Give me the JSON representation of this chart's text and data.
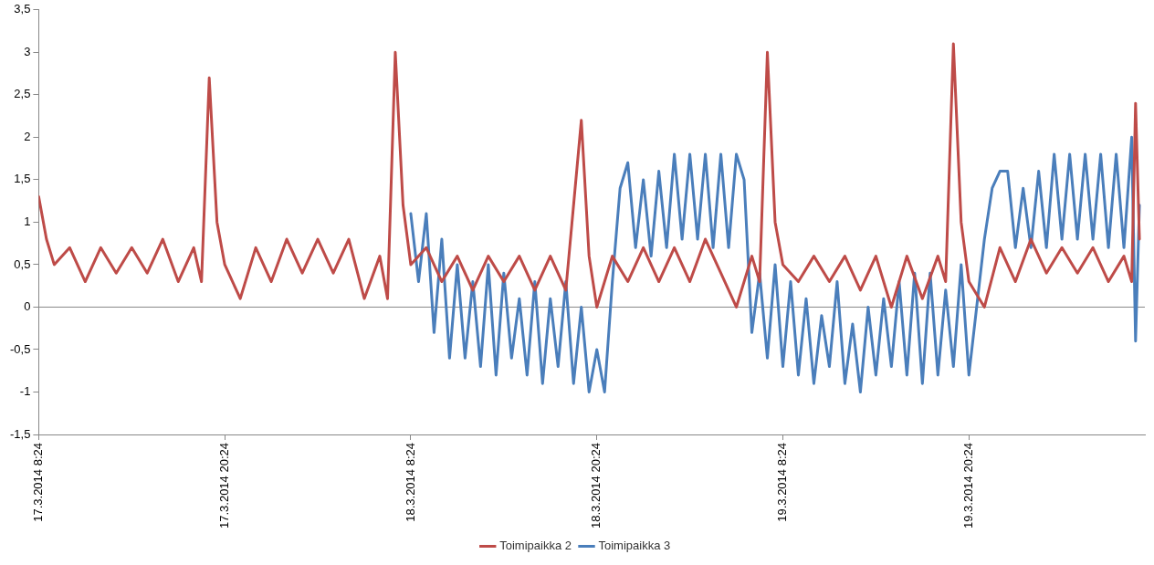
{
  "chart_data": {
    "type": "line",
    "legend": "bottom",
    "grid": false,
    "marker": "none",
    "line_style": "solid",
    "xlim": [
      "2014-03-17T08:24",
      "2014-03-20T07:45"
    ],
    "xticks": [
      {
        "value": "2014-03-17T08:24",
        "label": "17.3.2014 8:24"
      },
      {
        "value": "2014-03-17T20:24",
        "label": "17.3.2014 20:24"
      },
      {
        "value": "2014-03-18T08:24",
        "label": "18.3.2014 8:24"
      },
      {
        "value": "2014-03-18T20:24",
        "label": "18.3.2014 20:24"
      },
      {
        "value": "2014-03-19T08:24",
        "label": "19.3.2014 8:24"
      },
      {
        "value": "2014-03-19T20:24",
        "label": "19.3.2014 20:24"
      }
    ],
    "ylim": [
      -1.5,
      3.5
    ],
    "ref_lines": [
      {
        "axis": "y",
        "value": 0,
        "color": "#888888"
      }
    ],
    "yticks": [
      {
        "value": -1.5,
        "label": "-1,5"
      },
      {
        "value": -1,
        "label": "-1"
      },
      {
        "value": -0.5,
        "label": "-0,5"
      },
      {
        "value": 0,
        "label": "0"
      },
      {
        "value": 0.5,
        "label": "0,5"
      },
      {
        "value": 1,
        "label": "1"
      },
      {
        "value": 1.5,
        "label": "1,5"
      },
      {
        "value": 2,
        "label": "2"
      },
      {
        "value": 2.5,
        "label": "2,5"
      },
      {
        "value": 3,
        "label": "3"
      },
      {
        "value": 3.5,
        "label": "3,5"
      }
    ],
    "series": [
      {
        "name": "Toimipaikka 2",
        "color": "#be4b48",
        "x": [
          "2014-03-17T08:24",
          "2014-03-17T08:54",
          "2014-03-17T09:24",
          "2014-03-17T10:24",
          "2014-03-17T11:24",
          "2014-03-17T12:24",
          "2014-03-17T13:24",
          "2014-03-17T14:24",
          "2014-03-17T15:24",
          "2014-03-17T16:24",
          "2014-03-17T17:24",
          "2014-03-17T18:24",
          "2014-03-17T18:54",
          "2014-03-17T19:24",
          "2014-03-17T19:54",
          "2014-03-17T20:24",
          "2014-03-17T21:24",
          "2014-03-17T22:24",
          "2014-03-17T23:24",
          "2014-03-18T00:24",
          "2014-03-18T01:24",
          "2014-03-18T02:24",
          "2014-03-18T03:24",
          "2014-03-18T04:24",
          "2014-03-18T05:24",
          "2014-03-18T06:24",
          "2014-03-18T06:54",
          "2014-03-18T07:24",
          "2014-03-18T07:54",
          "2014-03-18T08:24",
          "2014-03-18T09:24",
          "2014-03-18T10:24",
          "2014-03-18T11:24",
          "2014-03-18T12:24",
          "2014-03-18T13:24",
          "2014-03-18T14:24",
          "2014-03-18T15:24",
          "2014-03-18T16:24",
          "2014-03-18T17:24",
          "2014-03-18T18:24",
          "2014-03-18T19:24",
          "2014-03-18T19:54",
          "2014-03-18T20:24",
          "2014-03-18T21:24",
          "2014-03-18T22:24",
          "2014-03-18T23:24",
          "2014-03-19T00:24",
          "2014-03-19T01:24",
          "2014-03-19T02:24",
          "2014-03-19T03:24",
          "2014-03-19T04:24",
          "2014-03-19T05:24",
          "2014-03-19T06:24",
          "2014-03-19T06:54",
          "2014-03-19T07:24",
          "2014-03-19T07:54",
          "2014-03-19T08:24",
          "2014-03-19T09:24",
          "2014-03-19T10:24",
          "2014-03-19T11:24",
          "2014-03-19T12:24",
          "2014-03-19T13:24",
          "2014-03-19T14:24",
          "2014-03-19T15:24",
          "2014-03-19T16:24",
          "2014-03-19T17:24",
          "2014-03-19T18:24",
          "2014-03-19T18:54",
          "2014-03-19T19:24",
          "2014-03-19T19:54",
          "2014-03-19T20:24",
          "2014-03-19T21:24",
          "2014-03-19T22:24",
          "2014-03-19T23:24",
          "2014-03-20T00:24",
          "2014-03-20T01:24",
          "2014-03-20T02:24",
          "2014-03-20T03:24",
          "2014-03-20T04:24",
          "2014-03-20T05:24",
          "2014-03-20T06:24",
          "2014-03-20T06:54",
          "2014-03-20T07:09",
          "2014-03-20T07:24"
        ],
        "values": [
          1.3,
          0.8,
          0.5,
          0.7,
          0.3,
          0.7,
          0.4,
          0.7,
          0.4,
          0.8,
          0.3,
          0.7,
          0.3,
          2.7,
          1.0,
          0.5,
          0.1,
          0.7,
          0.3,
          0.8,
          0.4,
          0.8,
          0.4,
          0.8,
          0.1,
          0.6,
          0.1,
          3.0,
          1.2,
          0.5,
          0.7,
          0.3,
          0.6,
          0.2,
          0.6,
          0.3,
          0.6,
          0.2,
          0.6,
          0.2,
          2.2,
          0.6,
          0.0,
          0.6,
          0.3,
          0.7,
          0.3,
          0.7,
          0.3,
          0.8,
          0.4,
          0.0,
          0.6,
          0.3,
          3.0,
          1.0,
          0.5,
          0.3,
          0.6,
          0.3,
          0.6,
          0.2,
          0.6,
          0.0,
          0.6,
          0.1,
          0.6,
          0.3,
          3.1,
          1.0,
          0.3,
          0.0,
          0.7,
          0.3,
          0.8,
          0.4,
          0.7,
          0.4,
          0.7,
          0.3,
          0.6,
          0.3,
          2.4,
          0.8
        ]
      },
      {
        "name": "Toimipaikka 3",
        "color": "#4a7ebb",
        "x": [
          "2014-03-18T08:24",
          "2014-03-18T08:54",
          "2014-03-18T09:24",
          "2014-03-18T09:54",
          "2014-03-18T10:24",
          "2014-03-18T10:54",
          "2014-03-18T11:24",
          "2014-03-18T11:54",
          "2014-03-18T12:24",
          "2014-03-18T12:54",
          "2014-03-18T13:24",
          "2014-03-18T13:54",
          "2014-03-18T14:24",
          "2014-03-18T14:54",
          "2014-03-18T15:24",
          "2014-03-18T15:54",
          "2014-03-18T16:24",
          "2014-03-18T16:54",
          "2014-03-18T17:24",
          "2014-03-18T17:54",
          "2014-03-18T18:24",
          "2014-03-18T18:54",
          "2014-03-18T19:24",
          "2014-03-18T19:54",
          "2014-03-18T20:24",
          "2014-03-18T20:54",
          "2014-03-18T21:24",
          "2014-03-18T21:54",
          "2014-03-18T22:24",
          "2014-03-18T22:54",
          "2014-03-18T23:24",
          "2014-03-18T23:54",
          "2014-03-19T00:24",
          "2014-03-19T00:54",
          "2014-03-19T01:24",
          "2014-03-19T01:54",
          "2014-03-19T02:24",
          "2014-03-19T02:54",
          "2014-03-19T03:24",
          "2014-03-19T03:54",
          "2014-03-19T04:24",
          "2014-03-19T04:54",
          "2014-03-19T05:24",
          "2014-03-19T05:54",
          "2014-03-19T06:24",
          "2014-03-19T06:54",
          "2014-03-19T07:24",
          "2014-03-19T07:54",
          "2014-03-19T08:24",
          "2014-03-19T08:54",
          "2014-03-19T09:24",
          "2014-03-19T09:54",
          "2014-03-19T10:24",
          "2014-03-19T10:54",
          "2014-03-19T11:24",
          "2014-03-19T11:54",
          "2014-03-19T12:24",
          "2014-03-19T12:54",
          "2014-03-19T13:24",
          "2014-03-19T13:54",
          "2014-03-19T14:24",
          "2014-03-19T14:54",
          "2014-03-19T15:24",
          "2014-03-19T15:54",
          "2014-03-19T16:24",
          "2014-03-19T16:54",
          "2014-03-19T17:24",
          "2014-03-19T17:54",
          "2014-03-19T18:24",
          "2014-03-19T18:54",
          "2014-03-19T19:24",
          "2014-03-19T19:54",
          "2014-03-19T20:24",
          "2014-03-19T20:54",
          "2014-03-19T21:24",
          "2014-03-19T21:54",
          "2014-03-19T22:24",
          "2014-03-19T22:54",
          "2014-03-19T23:24",
          "2014-03-19T23:54",
          "2014-03-20T00:24",
          "2014-03-20T00:54",
          "2014-03-20T01:24",
          "2014-03-20T01:54",
          "2014-03-20T02:24",
          "2014-03-20T02:54",
          "2014-03-20T03:24",
          "2014-03-20T03:54",
          "2014-03-20T04:24",
          "2014-03-20T04:54",
          "2014-03-20T05:24",
          "2014-03-20T05:54",
          "2014-03-20T06:24",
          "2014-03-20T06:54",
          "2014-03-20T07:09",
          "2014-03-20T07:24"
        ],
        "values": [
          1.1,
          0.3,
          1.1,
          -0.3,
          0.8,
          -0.6,
          0.5,
          -0.6,
          0.3,
          -0.7,
          0.5,
          -0.8,
          0.4,
          -0.6,
          0.1,
          -0.8,
          0.3,
          -0.9,
          0.1,
          -0.7,
          0.3,
          -0.9,
          0.0,
          -1.0,
          -0.5,
          -1.0,
          0.3,
          1.4,
          1.7,
          0.7,
          1.5,
          0.6,
          1.6,
          0.7,
          1.8,
          0.8,
          1.8,
          0.8,
          1.8,
          0.7,
          1.8,
          0.7,
          1.8,
          1.5,
          -0.3,
          0.4,
          -0.6,
          0.5,
          -0.7,
          0.3,
          -0.8,
          0.1,
          -0.9,
          -0.1,
          -0.7,
          0.3,
          -0.9,
          -0.2,
          -1.0,
          0.0,
          -0.8,
          0.1,
          -0.7,
          0.3,
          -0.8,
          0.4,
          -0.9,
          0.4,
          -0.8,
          0.2,
          -0.7,
          0.5,
          -0.8,
          0.0,
          0.8,
          1.4,
          1.6,
          1.6,
          0.7,
          1.4,
          0.7,
          1.6,
          0.7,
          1.8,
          0.8,
          1.8,
          0.8,
          1.8,
          0.8,
          1.8,
          0.7,
          1.8,
          0.7,
          2.0,
          -0.4,
          1.2
        ]
      }
    ]
  }
}
